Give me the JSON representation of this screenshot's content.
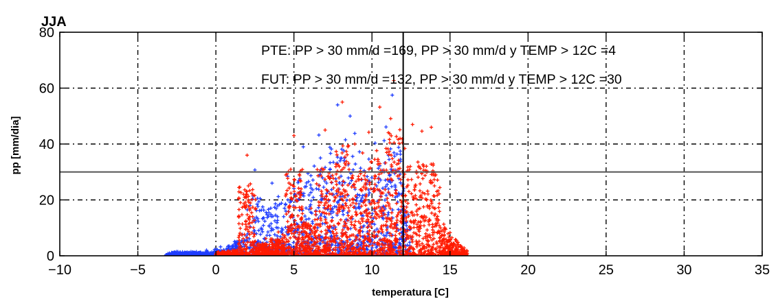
{
  "chart_data": {
    "type": "scatter",
    "title": "JJA",
    "xlabel": "temperatura [C]",
    "ylabel": "pp [mm/dia]",
    "xlim": [
      -10,
      35
    ],
    "ylim": [
      0,
      80
    ],
    "x_ticks": [
      "−10",
      "−5",
      "0",
      "5",
      "10",
      "15",
      "20",
      "25",
      "30",
      "35"
    ],
    "y_ticks": [
      "0",
      "20",
      "40",
      "60",
      "80"
    ],
    "grid": true,
    "reference_lines": {
      "x": 12,
      "y": 30
    },
    "annotations": [
      "PTE: PP > 30 mm/d =169, PP > 30 mm/d y TEMP > 12C =4",
      "FUT: PP > 30 mm/d =132, PP > 30 mm/d y TEMP > 12C =30"
    ],
    "series": [
      {
        "color": "#1f3dff",
        "marker": "+",
        "points": [
          [
            -3.2,
            0.2
          ],
          [
            -2.4,
            0.6
          ],
          [
            -1.5,
            1.3
          ],
          [
            -0.6,
            2.0
          ],
          [
            0.3,
            3.2
          ],
          [
            1.2,
            5.1
          ],
          [
            1.7,
            7.6
          ],
          [
            2.2,
            10.4
          ],
          [
            2.6,
            13.8
          ],
          [
            2.5,
            30.7
          ],
          [
            3.0,
            17.5
          ],
          [
            3.4,
            15.4
          ],
          [
            3.6,
            26.0
          ],
          [
            4.0,
            21.2
          ],
          [
            4.2,
            18.8
          ],
          [
            4.6,
            28.4
          ],
          [
            5.0,
            24.1
          ],
          [
            5.3,
            26.8
          ],
          [
            5.6,
            39.0
          ],
          [
            5.9,
            29.5
          ],
          [
            6.3,
            32.1
          ],
          [
            6.7,
            35.0
          ],
          [
            6.6,
            43.2
          ],
          [
            7.0,
            31.6
          ],
          [
            7.4,
            38.2
          ],
          [
            7.8,
            54.0
          ],
          [
            8.0,
            34.9
          ],
          [
            8.3,
            41.5
          ],
          [
            8.6,
            50.0
          ],
          [
            8.9,
            43.8
          ],
          [
            9.2,
            37.2
          ],
          [
            9.5,
            30.5
          ],
          [
            9.8,
            34.6
          ],
          [
            10.2,
            40.3
          ],
          [
            10.5,
            32.2
          ],
          [
            10.9,
            46.1
          ],
          [
            11.3,
            57.5
          ],
          [
            11.6,
            36.4
          ],
          [
            11.9,
            22.0
          ],
          [
            12.2,
            12.1
          ],
          [
            12.5,
            6.3
          ]
        ]
      },
      {
        "color": "#ff1a00",
        "marker": "+",
        "points": [
          [
            0.0,
            0.5
          ],
          [
            0.8,
            1.8
          ],
          [
            1.6,
            2.9
          ],
          [
            2.4,
            4.1
          ],
          [
            3.2,
            6.2
          ],
          [
            4.0,
            8.5
          ],
          [
            4.8,
            10.8
          ],
          [
            5.5,
            13.6
          ],
          [
            6.1,
            17.0
          ],
          [
            6.8,
            22.1
          ],
          [
            7.4,
            26.3
          ],
          [
            8.0,
            30.2
          ],
          [
            8.5,
            33.1
          ],
          [
            8.9,
            40.0
          ],
          [
            9.4,
            36.8
          ],
          [
            9.8,
            44.2
          ],
          [
            10.2,
            28.7
          ],
          [
            10.5,
            53.2
          ],
          [
            10.9,
            38.4
          ],
          [
            11.2,
            49.1
          ],
          [
            11.4,
            62.7
          ],
          [
            11.6,
            32.8
          ],
          [
            11.8,
            42.0
          ],
          [
            12.1,
            38.4
          ],
          [
            12.4,
            30.8
          ],
          [
            12.8,
            25.3
          ],
          [
            13.2,
            44.6
          ],
          [
            13.5,
            20.0
          ],
          [
            13.9,
            17.4
          ],
          [
            14.2,
            14.1
          ],
          [
            14.6,
            11.3
          ],
          [
            15.0,
            8.3
          ],
          [
            15.4,
            5.1
          ],
          [
            15.8,
            2.7
          ],
          [
            16.1,
            0.8
          ],
          [
            2.0,
            36.0
          ],
          [
            5.0,
            43.0
          ],
          [
            7.0,
            45.0
          ],
          [
            8.1,
            55.0
          ],
          [
            12.6,
            47.0
          ],
          [
            13.8,
            46.0
          ]
        ]
      }
    ]
  }
}
